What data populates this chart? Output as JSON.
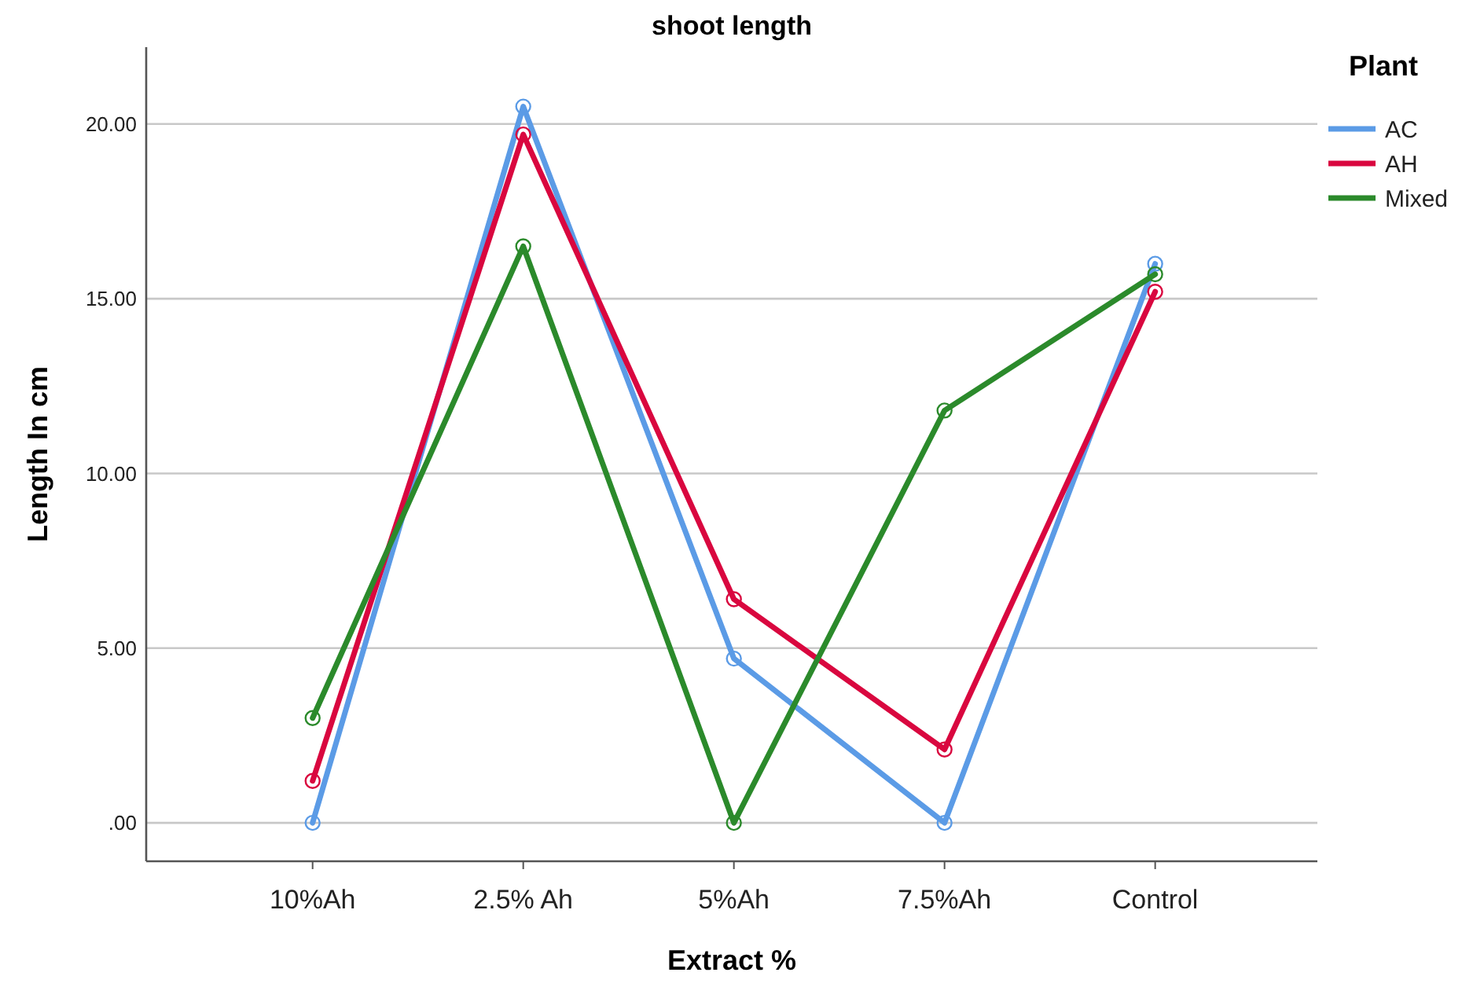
{
  "chart_data": {
    "type": "line",
    "title": "shoot length",
    "xlabel": "Extract %",
    "ylabel": "Length In cm",
    "legend_title": "Plant",
    "categories": [
      "10%Ah",
      "2.5% Ah",
      "5%Ah",
      "7.5%Ah",
      "Control"
    ],
    "series": [
      {
        "name": "AC",
        "color": "#5b9be6",
        "values": [
          0,
          20.5,
          4.7,
          0,
          16.0
        ]
      },
      {
        "name": "AH",
        "color": "#d9073f",
        "values": [
          1.2,
          19.7,
          6.4,
          2.1,
          15.2
        ]
      },
      {
        "name": "Mixed",
        "color": "#2b8a2b",
        "values": [
          3.0,
          16.5,
          0,
          11.8,
          15.7
        ]
      }
    ],
    "ylim": [
      -1.1,
      22.2
    ],
    "yticks": [
      {
        "value": 0,
        "label": ".00"
      },
      {
        "value": 5,
        "label": "5.00"
      },
      {
        "value": 10,
        "label": "10.00"
      },
      {
        "value": 15,
        "label": "15.00"
      },
      {
        "value": 20,
        "label": "20.00"
      }
    ],
    "grid": "y",
    "legend": "top right",
    "marker": "circle",
    "line_style": "solid"
  }
}
